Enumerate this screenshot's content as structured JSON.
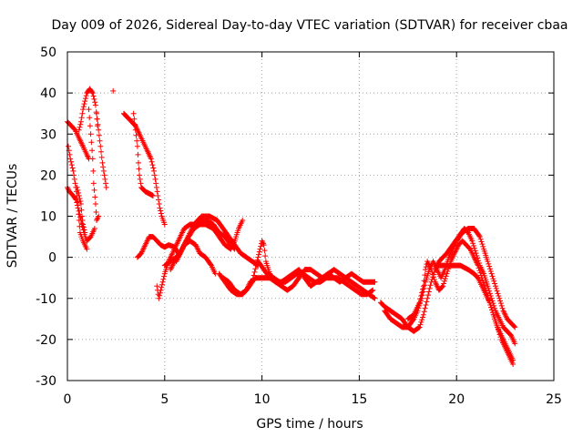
{
  "chart_data": {
    "type": "scatter",
    "title": "Day 009 of 2026, Sidereal Day-to-day VTEC variation (SDTVAR) for receiver cbaa",
    "xlabel": "GPS time / hours",
    "ylabel": "SDTVAR / TECUs",
    "xlim": [
      0,
      25
    ],
    "ylim": [
      -30,
      50
    ],
    "xticks": [
      0,
      5,
      10,
      15,
      20,
      25
    ],
    "yticks": [
      -30,
      -20,
      -10,
      0,
      10,
      20,
      30,
      40,
      50
    ],
    "grid": true,
    "marker": "+",
    "series_color": "#ff0000",
    "traces": [
      [
        [
          0.0,
          33
        ],
        [
          0.2,
          32
        ],
        [
          0.4,
          31
        ],
        [
          0.6,
          29
        ],
        [
          0.8,
          27
        ],
        [
          1.0,
          25
        ],
        [
          1.1,
          24
        ]
      ],
      [
        [
          0.05,
          27
        ],
        [
          0.15,
          24
        ],
        [
          0.3,
          21
        ],
        [
          0.4,
          18
        ],
        [
          0.5,
          15
        ],
        [
          0.55,
          12
        ],
        [
          0.6,
          9
        ],
        [
          0.65,
          6
        ],
        [
          0.8,
          4
        ],
        [
          1.0,
          2
        ]
      ],
      [
        [
          0.0,
          17
        ],
        [
          0.1,
          16
        ],
        [
          0.3,
          15
        ],
        [
          0.45,
          14
        ],
        [
          0.55,
          12
        ],
        [
          0.7,
          9
        ],
        [
          0.85,
          6
        ],
        [
          1.0,
          4
        ],
        [
          1.2,
          5
        ],
        [
          1.4,
          7
        ]
      ],
      [
        [
          0.5,
          17
        ],
        [
          0.6,
          15
        ],
        [
          0.7,
          13
        ],
        [
          0.75,
          10
        ],
        [
          0.8,
          8
        ],
        [
          0.9,
          6
        ]
      ],
      [
        [
          0.6,
          31
        ],
        [
          0.7,
          33
        ],
        [
          0.8,
          36
        ],
        [
          0.9,
          38
        ],
        [
          1.0,
          40
        ],
        [
          1.15,
          41
        ],
        [
          1.3,
          40
        ],
        [
          1.45,
          37
        ],
        [
          1.55,
          32
        ]
      ],
      [
        [
          1.1,
          36
        ],
        [
          1.2,
          30
        ],
        [
          1.3,
          24
        ],
        [
          1.35,
          18
        ],
        [
          1.45,
          13
        ],
        [
          1.5,
          9
        ],
        [
          1.6,
          10
        ]
      ],
      [
        [
          1.5,
          35
        ],
        [
          1.6,
          31
        ],
        [
          1.7,
          27
        ],
        [
          1.8,
          23
        ],
        [
          1.9,
          20
        ],
        [
          2.0,
          17
        ]
      ],
      [
        [
          2.35,
          40.5
        ]
      ],
      [
        [
          2.9,
          35
        ],
        [
          3.1,
          34
        ],
        [
          3.3,
          33
        ],
        [
          3.5,
          32
        ],
        [
          3.7,
          30
        ],
        [
          3.9,
          28
        ],
        [
          4.1,
          26
        ],
        [
          4.3,
          24
        ],
        [
          4.45,
          21
        ],
        [
          4.55,
          18
        ],
        [
          4.65,
          15
        ],
        [
          4.75,
          12
        ],
        [
          4.85,
          10
        ],
        [
          5.0,
          8
        ]
      ],
      [
        [
          3.4,
          35
        ],
        [
          3.5,
          31
        ],
        [
          3.6,
          27
        ],
        [
          3.65,
          23
        ],
        [
          3.7,
          20
        ],
        [
          3.8,
          17
        ],
        [
          4.0,
          16
        ],
        [
          4.2,
          15.5
        ],
        [
          4.4,
          15
        ]
      ],
      [
        [
          3.6,
          0
        ],
        [
          3.8,
          1
        ],
        [
          4.0,
          3
        ],
        [
          4.2,
          5
        ],
        [
          4.4,
          5
        ],
        [
          4.6,
          4
        ],
        [
          4.8,
          3
        ],
        [
          5.0,
          2.5
        ],
        [
          5.2,
          3
        ],
        [
          5.5,
          2.5
        ],
        [
          5.7,
          1
        ]
      ],
      [
        [
          4.6,
          -7
        ],
        [
          4.7,
          -10
        ],
        [
          4.8,
          -8
        ],
        [
          4.9,
          -6
        ],
        [
          5.0,
          -4
        ],
        [
          5.2,
          -1
        ],
        [
          5.4,
          1
        ],
        [
          5.6,
          3
        ],
        [
          5.8,
          5
        ],
        [
          6.0,
          7
        ],
        [
          6.3,
          8
        ],
        [
          6.6,
          8
        ],
        [
          6.9,
          9
        ],
        [
          7.2,
          9
        ],
        [
          7.5,
          8
        ],
        [
          7.8,
          6
        ],
        [
          8.1,
          5
        ],
        [
          8.4,
          3
        ],
        [
          8.6,
          2
        ]
      ],
      [
        [
          5.6,
          -1
        ],
        [
          5.8,
          1
        ],
        [
          6.0,
          3
        ],
        [
          6.3,
          4
        ],
        [
          6.6,
          3
        ],
        [
          6.8,
          1
        ],
        [
          7.1,
          0
        ],
        [
          7.4,
          -2
        ],
        [
          7.6,
          -4
        ]
      ],
      [
        [
          5.3,
          -3
        ],
        [
          5.5,
          -1
        ],
        [
          5.8,
          1
        ],
        [
          6.1,
          4
        ],
        [
          6.5,
          7
        ],
        [
          6.8,
          8
        ],
        [
          7.1,
          8
        ],
        [
          7.5,
          7
        ],
        [
          7.8,
          5
        ],
        [
          8.1,
          3
        ],
        [
          8.4,
          2
        ],
        [
          8.6,
          4
        ],
        [
          8.8,
          7
        ],
        [
          9.0,
          9
        ]
      ],
      [
        [
          5.0,
          -2
        ],
        [
          5.3,
          -1
        ],
        [
          5.6,
          0
        ],
        [
          5.9,
          2
        ],
        [
          6.2,
          5
        ],
        [
          6.5,
          8
        ],
        [
          6.9,
          10
        ],
        [
          7.3,
          10
        ],
        [
          7.7,
          9
        ],
        [
          8.0,
          7
        ],
        [
          8.3,
          5
        ],
        [
          8.6,
          3
        ],
        [
          8.9,
          1
        ],
        [
          9.2,
          0
        ],
        [
          9.5,
          -1
        ],
        [
          9.8,
          -2
        ]
      ],
      [
        [
          7.8,
          -4
        ],
        [
          8.1,
          -6
        ],
        [
          8.4,
          -8
        ],
        [
          8.7,
          -9
        ],
        [
          9.0,
          -9
        ],
        [
          9.2,
          -8
        ],
        [
          9.5,
          -6
        ],
        [
          9.7,
          -2
        ],
        [
          9.9,
          2
        ],
        [
          10.0,
          4
        ],
        [
          10.1,
          3
        ],
        [
          10.2,
          -1
        ],
        [
          10.4,
          -4
        ],
        [
          10.7,
          -6
        ],
        [
          11.0,
          -7
        ],
        [
          11.3,
          -8
        ],
        [
          11.6,
          -7
        ],
        [
          11.9,
          -5
        ],
        [
          12.2,
          -3
        ],
        [
          12.5,
          -3
        ],
        [
          12.8,
          -4
        ],
        [
          13.1,
          -5
        ],
        [
          13.4,
          -4
        ],
        [
          13.7,
          -3
        ],
        [
          14.0,
          -4
        ],
        [
          14.3,
          -5
        ],
        [
          14.6,
          -6
        ],
        [
          14.9,
          -7
        ],
        [
          15.2,
          -8
        ],
        [
          15.5,
          -9
        ],
        [
          15.8,
          -10
        ]
      ],
      [
        [
          8.0,
          -5
        ],
        [
          8.3,
          -6
        ],
        [
          8.6,
          -8
        ],
        [
          8.9,
          -9
        ],
        [
          9.2,
          -8
        ],
        [
          9.4,
          -6
        ],
        [
          9.7,
          -5
        ],
        [
          10.0,
          -5
        ],
        [
          10.3,
          -5
        ],
        [
          10.6,
          -5
        ],
        [
          10.9,
          -6
        ],
        [
          11.2,
          -6
        ],
        [
          11.5,
          -5
        ],
        [
          11.8,
          -4
        ],
        [
          12.1,
          -4
        ],
        [
          12.4,
          -5
        ],
        [
          12.7,
          -6
        ],
        [
          13.0,
          -6
        ],
        [
          13.3,
          -5
        ],
        [
          13.6,
          -5
        ],
        [
          13.9,
          -5
        ],
        [
          14.2,
          -6
        ],
        [
          14.5,
          -7
        ],
        [
          14.8,
          -8
        ],
        [
          15.1,
          -9
        ],
        [
          15.4,
          -9
        ],
        [
          15.7,
          -8
        ]
      ],
      [
        [
          9.8,
          -1
        ],
        [
          10.1,
          -3
        ],
        [
          10.4,
          -5
        ],
        [
          10.7,
          -6
        ],
        [
          11.0,
          -6
        ],
        [
          11.3,
          -5
        ],
        [
          11.6,
          -4
        ],
        [
          11.9,
          -3
        ],
        [
          12.2,
          -5
        ],
        [
          12.5,
          -7
        ],
        [
          12.8,
          -6
        ],
        [
          13.1,
          -5
        ],
        [
          13.4,
          -4
        ],
        [
          13.7,
          -5
        ],
        [
          14.0,
          -6
        ],
        [
          14.3,
          -5
        ],
        [
          14.6,
          -4
        ],
        [
          14.9,
          -5
        ],
        [
          15.2,
          -6
        ],
        [
          15.5,
          -6
        ],
        [
          15.8,
          -6
        ]
      ],
      [
        [
          16.1,
          -11
        ],
        [
          16.3,
          -12
        ],
        [
          16.6,
          -13
        ],
        [
          16.9,
          -14
        ],
        [
          17.2,
          -15
        ],
        [
          17.5,
          -17
        ],
        [
          17.8,
          -18
        ],
        [
          18.1,
          -17
        ],
        [
          18.3,
          -14
        ],
        [
          18.5,
          -10
        ],
        [
          18.7,
          -6
        ],
        [
          18.9,
          -3
        ],
        [
          19.1,
          -1
        ],
        [
          19.3,
          0
        ],
        [
          19.5,
          1
        ],
        [
          19.8,
          3
        ],
        [
          20.1,
          5
        ],
        [
          20.4,
          7
        ],
        [
          20.6,
          6
        ],
        [
          20.8,
          4
        ],
        [
          21.0,
          1
        ],
        [
          21.2,
          -2
        ],
        [
          21.4,
          -4
        ],
        [
          21.6,
          -7
        ],
        [
          21.8,
          -10
        ],
        [
          22.0,
          -13
        ],
        [
          22.2,
          -15
        ],
        [
          22.4,
          -17
        ],
        [
          22.6,
          -18
        ],
        [
          22.8,
          -19
        ],
        [
          23.0,
          -21
        ]
      ],
      [
        [
          16.3,
          -13
        ],
        [
          16.6,
          -15
        ],
        [
          16.9,
          -16
        ],
        [
          17.2,
          -17
        ],
        [
          17.5,
          -17
        ],
        [
          17.8,
          -15
        ],
        [
          18.0,
          -13
        ],
        [
          18.2,
          -10
        ],
        [
          18.4,
          -6
        ],
        [
          18.6,
          -3
        ],
        [
          18.8,
          -1
        ],
        [
          19.0,
          -3
        ],
        [
          19.2,
          -5
        ],
        [
          19.4,
          -3
        ],
        [
          19.6,
          0
        ],
        [
          19.8,
          2
        ],
        [
          20.0,
          4
        ],
        [
          20.3,
          6
        ],
        [
          20.6,
          7
        ],
        [
          20.9,
          7
        ],
        [
          21.2,
          5
        ],
        [
          21.4,
          2
        ],
        [
          21.6,
          -1
        ],
        [
          21.8,
          -4
        ],
        [
          22.0,
          -7
        ],
        [
          22.2,
          -10
        ],
        [
          22.4,
          -13
        ],
        [
          22.6,
          -15
        ],
        [
          22.8,
          -16
        ],
        [
          23.0,
          -17
        ]
      ],
      [
        [
          17.5,
          -15
        ],
        [
          17.8,
          -14
        ],
        [
          18.1,
          -11
        ],
        [
          18.3,
          -7
        ],
        [
          18.4,
          -3
        ],
        [
          18.5,
          -1
        ],
        [
          18.7,
          -3
        ],
        [
          18.9,
          -6
        ],
        [
          19.1,
          -8
        ],
        [
          19.3,
          -7
        ],
        [
          19.5,
          -4
        ],
        [
          19.7,
          -1
        ],
        [
          19.9,
          1
        ],
        [
          20.1,
          3
        ],
        [
          20.3,
          4
        ],
        [
          20.5,
          3
        ],
        [
          20.7,
          2
        ],
        [
          20.9,
          0
        ],
        [
          21.1,
          -2
        ],
        [
          21.3,
          -5
        ],
        [
          21.5,
          -8
        ],
        [
          21.7,
          -11
        ],
        [
          21.9,
          -14
        ],
        [
          22.1,
          -17
        ],
        [
          22.3,
          -19
        ],
        [
          22.5,
          -21
        ],
        [
          22.7,
          -23
        ],
        [
          22.9,
          -25
        ]
      ],
      [
        [
          19.0,
          -2
        ],
        [
          19.3,
          -2
        ],
        [
          19.6,
          -2
        ],
        [
          19.9,
          -2
        ],
        [
          20.2,
          -2
        ],
        [
          20.6,
          -3
        ],
        [
          20.9,
          -4
        ],
        [
          21.1,
          -5
        ],
        [
          21.3,
          -7
        ],
        [
          21.5,
          -9
        ],
        [
          21.7,
          -11
        ],
        [
          21.9,
          -14
        ],
        [
          22.1,
          -17
        ],
        [
          22.3,
          -20
        ],
        [
          22.5,
          -22
        ],
        [
          22.7,
          -24
        ],
        [
          22.9,
          -26
        ]
      ]
    ]
  }
}
